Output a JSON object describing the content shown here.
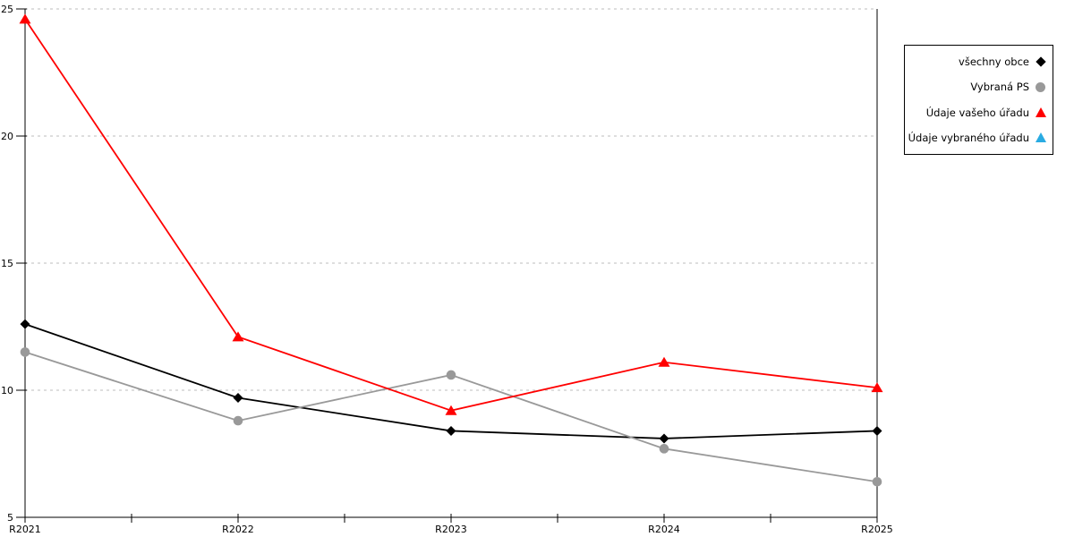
{
  "chart_data": {
    "type": "line",
    "categories": [
      "R2021",
      "R2022",
      "R2023",
      "R2024",
      "R2025"
    ],
    "series": [
      {
        "name": "všechny obce",
        "color": "#000000",
        "marker": "diamond",
        "values": [
          12.6,
          9.7,
          8.4,
          8.1,
          8.4
        ]
      },
      {
        "name": "Vybraná PS",
        "color": "#999999",
        "marker": "circle",
        "values": [
          11.5,
          8.8,
          10.6,
          7.7,
          6.4
        ]
      },
      {
        "name": "Údaje vašeho úřadu",
        "color": "#ff0000",
        "marker": "triangle",
        "values": [
          24.6,
          12.1,
          9.2,
          11.1,
          10.1
        ]
      },
      {
        "name": "Údaje vybraného úřadu",
        "color": "#29abe2",
        "marker": "triangle",
        "values": []
      }
    ],
    "y_axis": {
      "min": 5,
      "max": 25,
      "ticks": [
        5,
        10,
        15,
        20,
        25
      ],
      "tick_labels": [
        "5",
        "10",
        "15",
        "20",
        "25"
      ]
    },
    "x_axis": {
      "tick_labels": [
        "R2021",
        "R2022",
        "R2023",
        "R2024",
        "R2025"
      ],
      "minor_ticks_between_categories": true
    },
    "grid": {
      "horizontal_dashed": true,
      "gridline_values": [
        10,
        15,
        20,
        25
      ]
    },
    "legend_position": "top-right",
    "title": "",
    "xlabel": "",
    "ylabel": ""
  },
  "style_colors": {
    "axis": "#000000",
    "grid": "#bdbdbd",
    "background": "#ffffff",
    "text": "#000000"
  }
}
